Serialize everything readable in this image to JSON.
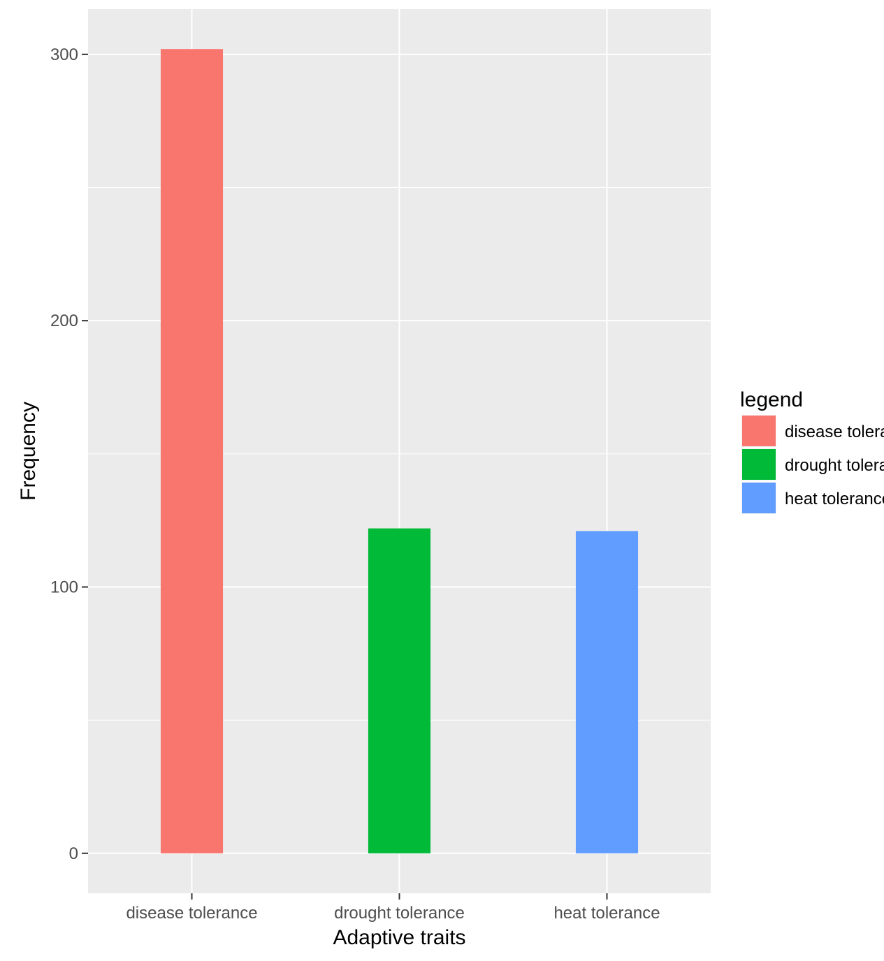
{
  "chart_data": {
    "type": "bar",
    "title": "",
    "xlabel": "Adaptive traits",
    "ylabel": "Frequency",
    "categories": [
      "disease tolerance",
      "drought tolerance",
      "heat tolerance"
    ],
    "values": [
      302,
      122,
      121
    ],
    "colors": [
      "#F8766D",
      "#00BA38",
      "#619CFF"
    ],
    "ylim": [
      -15,
      317
    ],
    "yticks": [
      0,
      100,
      200,
      300
    ],
    "grid": true,
    "panel_background": "#EBEBEB",
    "legend": {
      "title": "legend",
      "position": "right",
      "items": [
        "disease tolerance",
        "drought tolerance",
        "heat tolerance"
      ]
    }
  }
}
